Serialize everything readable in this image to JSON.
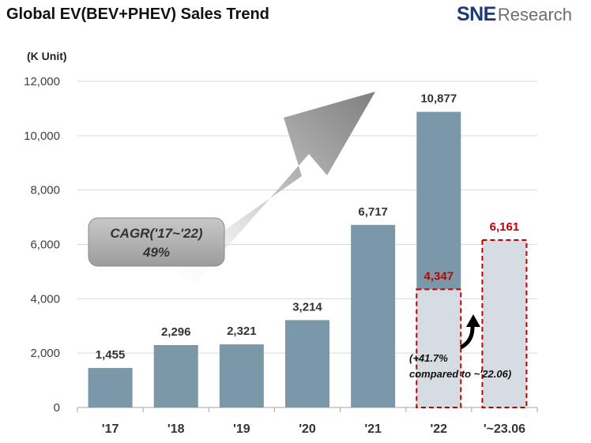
{
  "header": {
    "title": "Global EV(BEV+PHEV)  Sales Trend",
    "logo_sne": "SNE",
    "logo_research": "Research"
  },
  "chart_data": {
    "type": "bar",
    "title": "Global EV(BEV+PHEV)  Sales Trend",
    "unit_label": "(K Unit)",
    "categories": [
      "'17",
      "'18",
      "'19",
      "'20",
      "'21",
      "'22",
      "'~23.06"
    ],
    "values": [
      1455,
      2296,
      2321,
      3214,
      6717,
      10877,
      6161
    ],
    "value_labels": [
      "1,455",
      "2,296",
      "2,321",
      "3,214",
      "6,717",
      "10,877",
      "6,161"
    ],
    "highlight": {
      "category": "'22",
      "value": 4347,
      "label": "4,347"
    },
    "yticks": [
      0,
      2000,
      4000,
      6000,
      8000,
      10000,
      12000
    ],
    "ytick_labels": [
      "0",
      "2,000",
      "4,000",
      "6,000",
      "8,000",
      "10,000",
      "12,000"
    ],
    "ylim": [
      0,
      12000
    ],
    "cagr": {
      "line1": "CAGR('17~'22)",
      "line2": "49%"
    },
    "growth_note": {
      "line1": "(+41.7%",
      "line2": "compared to ~'22.06)"
    },
    "colors": {
      "bar": "#7a98a8",
      "highlight_fill": "#d6dde2",
      "highlight_border": "#c00000",
      "red_label": "#c00000",
      "grid": "#d9d9d9"
    }
  }
}
